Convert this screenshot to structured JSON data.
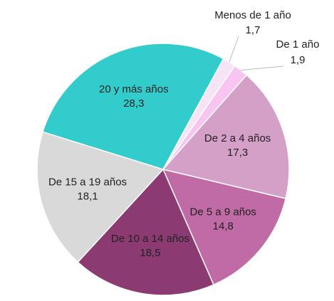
{
  "chart_data": {
    "type": "pie",
    "categories": [
      "Menos de 1 año",
      "De 1 año",
      "De 2 a 4 años",
      "De 5 a 9 años",
      "De 10 a 14 años",
      "De 15 a 19 años",
      "20 y más años"
    ],
    "values": [
      1.7,
      1.9,
      17.3,
      14.8,
      18.5,
      18.1,
      28.3
    ],
    "value_labels": [
      "1,7",
      "1,9",
      "17,3",
      "14,8",
      "18,5",
      "18,1",
      "28,3"
    ],
    "colors": [
      "#f6e4f6",
      "#f8c4f2",
      "#d5a0c7",
      "#c06aa6",
      "#8b3b72",
      "#d9d9d9",
      "#33cccc"
    ]
  }
}
